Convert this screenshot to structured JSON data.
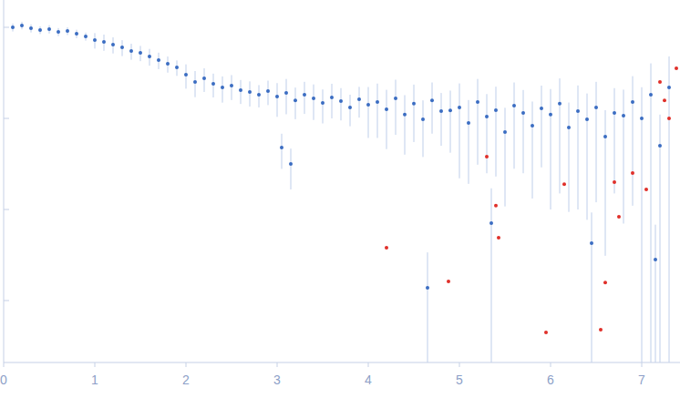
{
  "chart_data": {
    "type": "scatter",
    "log": "y",
    "grid": false,
    "tick_labels": "x",
    "xlim": [
      0,
      7.42
    ],
    "ylim": [
      0.000209,
      1.995
    ],
    "xticks": [
      0,
      1,
      2,
      3,
      4,
      5,
      6,
      7
    ],
    "yticks": [
      0.001,
      0.01,
      0.1,
      1
    ],
    "series": [
      {
        "color": "#3b6dc2",
        "marker": "circle",
        "x": [
          0.1,
          0.2,
          0.3,
          0.4,
          0.5,
          0.6,
          0.7,
          0.8,
          0.9,
          1.0,
          1.1,
          1.2,
          1.3,
          1.4,
          1.5,
          1.6,
          1.7,
          1.8,
          1.9,
          2.0,
          2.1,
          2.2,
          2.3,
          2.4,
          2.5,
          2.6,
          2.7,
          2.8,
          2.9,
          3.0,
          3.05,
          3.1,
          3.15,
          3.2,
          3.3,
          3.4,
          3.5,
          3.6,
          3.7,
          3.8,
          3.9,
          4.0,
          4.1,
          4.2,
          4.3,
          4.4,
          4.5,
          4.6,
          4.65,
          4.7,
          4.8,
          4.9,
          5.0,
          5.1,
          5.2,
          5.3,
          5.35,
          5.4,
          5.5,
          5.6,
          5.7,
          5.8,
          5.9,
          6.0,
          6.1,
          6.2,
          6.3,
          6.4,
          6.45,
          6.5,
          6.6,
          6.7,
          6.8,
          6.9,
          7.0,
          7.1,
          7.15,
          7.2,
          7.3
        ],
        "values": [
          1.0,
          1.05,
          0.977,
          0.933,
          0.955,
          0.891,
          0.912,
          0.851,
          0.794,
          0.724,
          0.692,
          0.646,
          0.603,
          0.55,
          0.525,
          0.479,
          0.437,
          0.398,
          0.363,
          0.302,
          0.251,
          0.275,
          0.24,
          0.219,
          0.229,
          0.204,
          0.195,
          0.182,
          0.2,
          0.174,
          0.0479,
          0.191,
          0.0316,
          0.158,
          0.182,
          0.166,
          0.148,
          0.17,
          0.155,
          0.132,
          0.162,
          0.141,
          0.151,
          0.126,
          0.166,
          0.11,
          0.145,
          0.0977,
          0.00138,
          0.158,
          0.12,
          0.122,
          0.132,
          0.0891,
          0.151,
          0.105,
          0.00708,
          0.123,
          0.0708,
          0.138,
          0.115,
          0.0832,
          0.129,
          0.11,
          0.145,
          0.0794,
          0.12,
          0.0977,
          0.00427,
          0.132,
          0.0631,
          0.115,
          0.107,
          0.151,
          0.1,
          0.182,
          0.00282,
          0.0501,
          0.219
        ],
        "errors": [
          0.1,
          0.1,
          0.1,
          0.09,
          0.1,
          0.09,
          0.09,
          0.09,
          0.08,
          0.14,
          0.14,
          0.13,
          0.12,
          0.11,
          0.1,
          0.1,
          0.09,
          0.08,
          0.07,
          0.09,
          0.08,
          0.08,
          0.07,
          0.07,
          0.07,
          0.06,
          0.06,
          0.05,
          0.06,
          0.07,
          0.02,
          0.08,
          0.015,
          0.06,
          0.07,
          0.07,
          0.06,
          0.07,
          0.06,
          0.05,
          0.06,
          0.08,
          0.09,
          0.08,
          0.1,
          0.07,
          0.09,
          0.06,
          0.002,
          0.09,
          0.07,
          0.08,
          0.11,
          0.07,
          0.12,
          0.08,
          0.01,
          0.1,
          0.06,
          0.11,
          0.09,
          0.07,
          0.1,
          0.1,
          0.13,
          0.07,
          0.11,
          0.09,
          0.005,
          0.12,
          0.06,
          0.1,
          0.1,
          0.14,
          0.12,
          0.22,
          0.004,
          0.06,
          0.26
        ]
      },
      {
        "color": "#e0302a",
        "marker": "circle",
        "x": [
          4.2,
          4.88,
          5.3,
          5.4,
          5.43,
          5.95,
          6.15,
          6.55,
          6.6,
          6.7,
          6.75,
          6.9,
          7.05,
          7.2,
          7.25,
          7.3,
          7.38
        ],
        "values": [
          0.0038,
          0.00162,
          0.038,
          0.011,
          0.0049,
          0.000447,
          0.019,
          0.000479,
          0.00158,
          0.02,
          0.00832,
          0.0251,
          0.0166,
          0.251,
          0.158,
          0.1,
          0.355
        ]
      }
    ]
  }
}
